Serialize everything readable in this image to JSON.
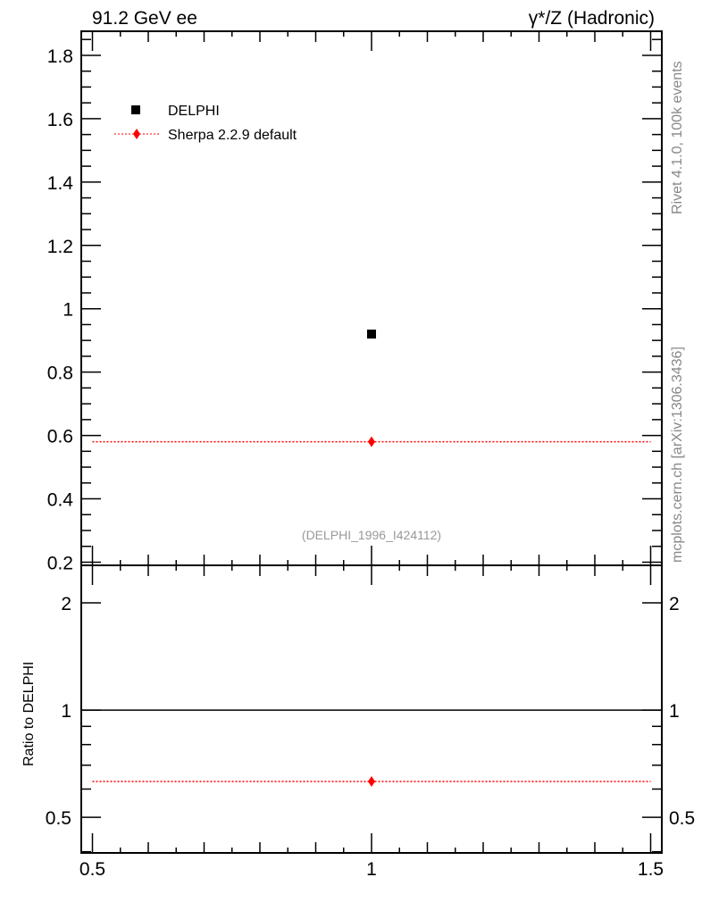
{
  "chart_data": {
    "type": "scatter",
    "title_left": "91.2 GeV ee",
    "title_right": "γ*/Z (Hadronic)",
    "analysis_label": "(DELPHI_1996_I424112)",
    "side_label_top": "Rivet 4.1.0,  100k events",
    "side_label_bottom": "mcplots.cern.ch [arXiv:1306.3436]",
    "xlim": [
      0.48,
      1.52
    ],
    "x_ticks": [
      0.5,
      1,
      1.5
    ],
    "x_tick_labels": [
      "0.5",
      "1",
      "1.5"
    ],
    "upper": {
      "ylim": [
        0.19,
        1.876
      ],
      "y_ticks": [
        0.2,
        0.4,
        0.6,
        0.8,
        1,
        1.2,
        1.4,
        1.6,
        1.8
      ],
      "y_tick_labels": [
        "0.2",
        "0.4",
        "0.6",
        "0.8",
        "1",
        "1.2",
        "1.4",
        "1.6",
        "1.8"
      ]
    },
    "lower": {
      "ylabel": "Ratio to DELPHI",
      "scale": "log",
      "ylim": [
        0.397,
        2.55
      ],
      "y_ticks": [
        0.5,
        1,
        2
      ],
      "y_tick_labels": [
        "0.5",
        "1",
        "2"
      ]
    },
    "legend_placement": "top-left",
    "series": [
      {
        "name": "DELPHI",
        "color": "#000000",
        "marker": "square",
        "x": [
          1
        ],
        "y": [
          0.92
        ],
        "ratio": [
          1
        ]
      },
      {
        "name": "Sherpa 2.2.9 default",
        "color": "#ff0000",
        "marker": "diamond",
        "line": "dotted",
        "x": [
          1
        ],
        "xrange": [
          0.5,
          1.5
        ],
        "y": [
          0.58
        ],
        "ratio": [
          0.63
        ]
      }
    ]
  }
}
